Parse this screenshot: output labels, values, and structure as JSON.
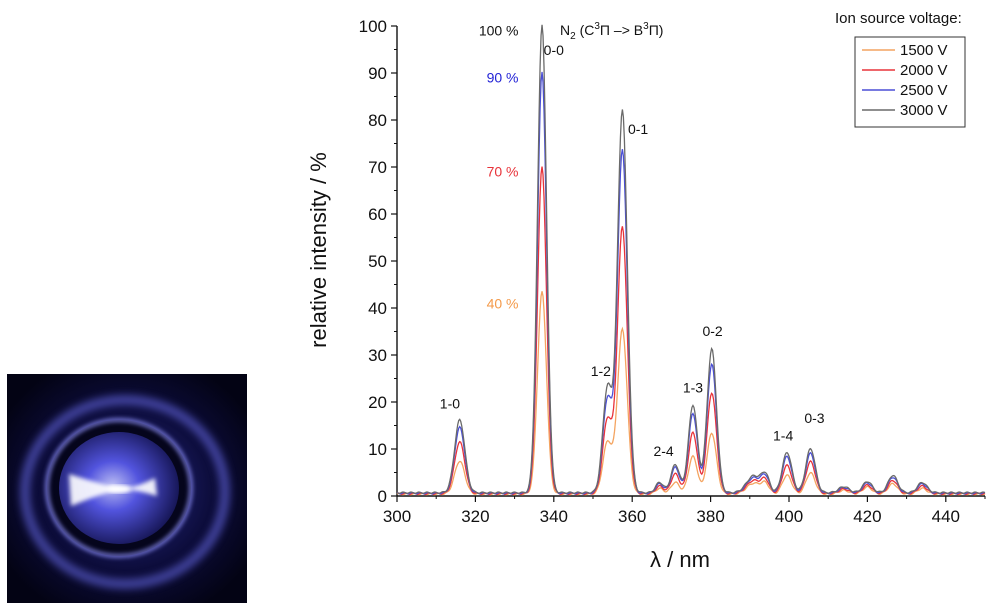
{
  "colors": {
    "series_1500": "#f4a460",
    "series_2000": "#e8333a",
    "series_2500": "#4b4fd6",
    "series_3000": "#6a6a6a",
    "photo_glow": "#5b5cf0"
  },
  "photo": {
    "icon": "plasma-discharge-photo"
  },
  "chart_data": {
    "type": "line",
    "xlabel": "λ / nm",
    "ylabel": "relative intensity / %",
    "xlim": [
      300,
      450
    ],
    "ylim": [
      0,
      100
    ],
    "xticks": [
      300,
      320,
      340,
      360,
      380,
      400,
      420,
      440
    ],
    "yticks": [
      0,
      10,
      20,
      30,
      40,
      50,
      60,
      70,
      80,
      90,
      100
    ],
    "grid": false,
    "legend": {
      "title": "Ion source voltage:",
      "position": "top-right"
    },
    "title_annotation": {
      "molecule": "N",
      "sub": "2",
      "transition": " (C",
      "sup1": "3",
      "mid": "Π –> B",
      "sup2": "3",
      "end": "Π)"
    },
    "level_labels": [
      {
        "text": "100 %",
        "color": "#111111",
        "x": 331,
        "y": 99
      },
      {
        "text": "90 %",
        "color": "#2323d6",
        "x": 331,
        "y": 89
      },
      {
        "text": "70 %",
        "color": "#e8333a",
        "x": 331,
        "y": 69
      },
      {
        "text": "40 %",
        "color": "#f49a4a",
        "x": 331,
        "y": 41
      }
    ],
    "band_labels": [
      {
        "text": "1-0",
        "x": 313.5,
        "y": 18.6
      },
      {
        "text": "0-0",
        "x": 340.0,
        "y": 93.8
      },
      {
        "text": "1-2",
        "x": 352.0,
        "y": 25.5
      },
      {
        "text": "0-1",
        "x": 361.5,
        "y": 77.0
      },
      {
        "text": "2-4",
        "x": 368.0,
        "y": 8.5
      },
      {
        "text": "1-3",
        "x": 375.5,
        "y": 22.0
      },
      {
        "text": "0-2",
        "x": 380.5,
        "y": 34.0
      },
      {
        "text": "1-4",
        "x": 398.5,
        "y": 11.8
      },
      {
        "text": "0-3",
        "x": 406.5,
        "y": 15.5
      }
    ],
    "peaks_x": [
      316.0,
      337.0,
      353.7,
      357.5,
      367.0,
      371.0,
      375.5,
      380.3,
      391.0,
      394.0,
      399.5,
      405.5,
      414.0,
      420.0,
      426.5,
      434.0
    ],
    "peak_widths": [
      1.3,
      1.15,
      1.2,
      1.25,
      1.0,
      1.1,
      1.15,
      1.2,
      1.8,
      1.0,
      1.2,
      1.2,
      1.3,
      1.2,
      1.2,
      1.2
    ],
    "baseline": 0.7,
    "series": [
      {
        "name": "1500 V",
        "peaks": [
          7.0,
          43.0,
          11.0,
          35.0,
          1.2,
          2.5,
          8.0,
          13.0,
          2.3,
          2.0,
          4.0,
          4.5,
          0.8,
          1.5,
          2.2,
          1.2
        ]
      },
      {
        "name": "2000 V",
        "peaks": [
          11.0,
          69.5,
          15.8,
          56.8,
          1.6,
          4.2,
          13.0,
          21.5,
          2.8,
          2.6,
          6.0,
          6.8,
          1.0,
          1.8,
          2.8,
          1.6
        ]
      },
      {
        "name": "2500 V",
        "peaks": [
          14.0,
          89.7,
          20.0,
          73.2,
          2.0,
          5.5,
          17.0,
          27.5,
          3.3,
          3.2,
          7.8,
          8.5,
          1.2,
          2.2,
          3.4,
          2.0
        ]
      },
      {
        "name": "3000 V",
        "peaks": [
          15.5,
          99.7,
          22.3,
          81.5,
          2.2,
          6.0,
          18.7,
          30.6,
          3.6,
          3.5,
          8.6,
          9.4,
          1.3,
          2.4,
          3.7,
          2.2
        ]
      }
    ]
  }
}
